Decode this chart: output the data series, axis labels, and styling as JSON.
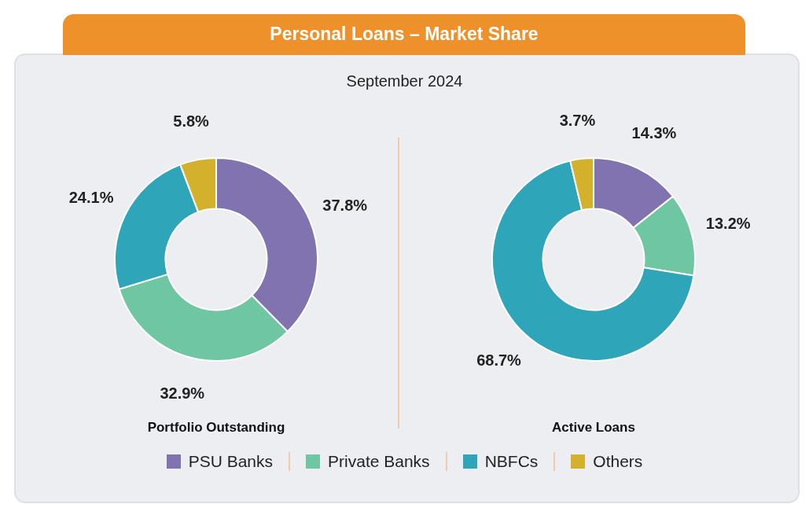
{
  "chart_data": [
    {
      "type": "other",
      "title": "Personal Loans – Market Share",
      "subtitle": "September 2024"
    },
    {
      "type": "donut",
      "xlabel": "Portfolio Outstanding",
      "categories": [
        "PSU Banks",
        "Private Banks",
        "NBFCs",
        "Others"
      ],
      "values": [
        37.8,
        32.9,
        24.1,
        5.8
      ],
      "colors": [
        "#8073b0",
        "#6fc6a2",
        "#2ea5b9",
        "#d4b12c"
      ],
      "value_labels": [
        "37.8%",
        "32.9%",
        "24.1%",
        "5.8%"
      ],
      "legend": "bottom"
    },
    {
      "type": "donut",
      "xlabel": "Active Loans",
      "categories": [
        null,
        null,
        null,
        null
      ],
      "values": [
        14.3,
        13.2,
        68.7,
        3.7
      ],
      "colors": [
        "#8073b0",
        "#6fc6a2",
        "#2ea5b9",
        "#d4b12c"
      ],
      "value_labels": [
        "14.3%",
        "13.2%",
        "68.7%",
        "3.7%"
      ]
    }
  ]
}
